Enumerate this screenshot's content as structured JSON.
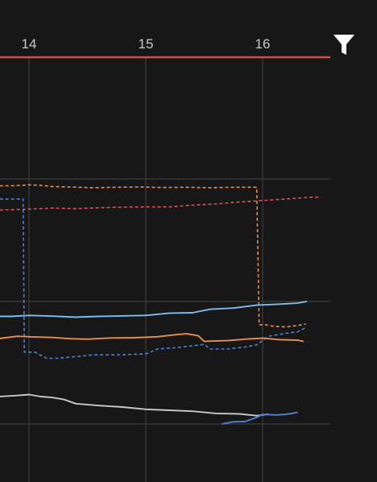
{
  "chart_data": {
    "type": "line",
    "x_ticks": [
      {
        "value": 14,
        "label": "14"
      },
      {
        "value": 15,
        "label": "15"
      },
      {
        "value": 16,
        "label": "16"
      }
    ],
    "grid": true,
    "series": [
      {
        "color": "#e8904a",
        "dash": true,
        "points": [
          [
            13.75,
            97.2
          ],
          [
            13.85,
            97.2
          ],
          [
            13.93,
            97.4
          ],
          [
            14.0,
            97.6
          ],
          [
            14.1,
            97.4
          ],
          [
            14.2,
            96.9
          ],
          [
            14.35,
            96.7
          ],
          [
            14.55,
            96.4
          ],
          [
            14.75,
            96.6
          ],
          [
            14.95,
            96.7
          ],
          [
            15.15,
            96.5
          ],
          [
            15.35,
            96.6
          ],
          [
            15.55,
            96.4
          ],
          [
            15.75,
            96.6
          ],
          [
            15.95,
            96.6
          ],
          [
            15.97,
            40.5
          ],
          [
            16.02,
            40.5
          ],
          [
            16.1,
            39.8
          ],
          [
            16.2,
            39.6
          ],
          [
            16.3,
            40.2
          ],
          [
            16.37,
            40.8
          ]
        ]
      },
      {
        "color": "#d9534f",
        "dash": true,
        "points": [
          [
            13.75,
            87.3
          ],
          [
            13.95,
            87.6
          ],
          [
            14.2,
            88.1
          ],
          [
            14.4,
            87.9
          ],
          [
            14.7,
            88.4
          ],
          [
            15.0,
            88.6
          ],
          [
            15.2,
            88.6
          ],
          [
            15.4,
            89.3
          ],
          [
            15.6,
            89.8
          ],
          [
            15.8,
            90.6
          ],
          [
            16.0,
            91.2
          ],
          [
            16.2,
            91.8
          ],
          [
            16.4,
            92.5
          ],
          [
            16.5,
            92.6
          ]
        ]
      },
      {
        "color": "#4f7fd4",
        "dash": true,
        "points": [
          [
            13.75,
            91.8
          ],
          [
            13.95,
            91.8
          ],
          [
            13.96,
            29.3
          ],
          [
            14.05,
            29.3
          ],
          [
            14.15,
            26.8
          ],
          [
            14.25,
            26.8
          ],
          [
            14.4,
            27.5
          ],
          [
            14.55,
            28.2
          ],
          [
            14.75,
            28.2
          ],
          [
            15.0,
            28.6
          ],
          [
            15.1,
            30.6
          ],
          [
            15.25,
            31.1
          ],
          [
            15.4,
            31.9
          ],
          [
            15.5,
            32.5
          ],
          [
            15.55,
            30.6
          ],
          [
            15.7,
            30.6
          ],
          [
            15.85,
            31.4
          ],
          [
            15.95,
            32.3
          ],
          [
            16.05,
            35.8
          ],
          [
            16.2,
            37.0
          ],
          [
            16.3,
            37.6
          ],
          [
            16.37,
            39.3
          ]
        ]
      },
      {
        "color": "#e8904a",
        "dash": false,
        "points": [
          [
            13.75,
            34.9
          ],
          [
            13.9,
            35.8
          ],
          [
            14.0,
            35.6
          ],
          [
            14.2,
            35.3
          ],
          [
            14.35,
            34.8
          ],
          [
            14.5,
            34.6
          ],
          [
            14.7,
            35.1
          ],
          [
            14.9,
            35.2
          ],
          [
            15.1,
            35.6
          ],
          [
            15.25,
            36.4
          ],
          [
            15.35,
            36.8
          ],
          [
            15.45,
            36.0
          ],
          [
            15.5,
            33.7
          ],
          [
            15.55,
            33.8
          ],
          [
            15.7,
            34.0
          ],
          [
            15.85,
            34.6
          ],
          [
            16.0,
            35.0
          ],
          [
            16.15,
            34.4
          ],
          [
            16.3,
            34.2
          ],
          [
            16.35,
            33.7
          ]
        ]
      },
      {
        "color": "#7fbbf0",
        "dash": false,
        "points": [
          [
            13.75,
            43.9
          ],
          [
            13.85,
            43.9
          ],
          [
            14.0,
            44.3
          ],
          [
            14.2,
            44.0
          ],
          [
            14.4,
            43.6
          ],
          [
            14.6,
            43.9
          ],
          [
            15.0,
            44.3
          ],
          [
            15.2,
            45.2
          ],
          [
            15.4,
            45.4
          ],
          [
            15.55,
            46.8
          ],
          [
            15.75,
            47.3
          ],
          [
            15.95,
            48.5
          ],
          [
            16.15,
            48.9
          ],
          [
            16.3,
            49.3
          ],
          [
            16.38,
            50.0
          ]
        ]
      },
      {
        "color": "#c8c8c8",
        "dash": false,
        "points": [
          [
            13.75,
            11.2
          ],
          [
            13.9,
            11.6
          ],
          [
            14.0,
            12.0
          ],
          [
            14.1,
            11.2
          ],
          [
            14.2,
            10.8
          ],
          [
            14.3,
            10.0
          ],
          [
            14.4,
            8.3
          ],
          [
            14.6,
            7.5
          ],
          [
            14.8,
            6.9
          ],
          [
            15.0,
            6.0
          ],
          [
            15.2,
            5.6
          ],
          [
            15.4,
            5.2
          ],
          [
            15.6,
            4.3
          ],
          [
            15.8,
            4.1
          ],
          [
            15.95,
            3.4
          ],
          [
            16.05,
            4.0
          ]
        ]
      },
      {
        "color": "#4f7fd4",
        "dash": false,
        "points": [
          [
            15.65,
            0.0
          ],
          [
            15.75,
            0.9
          ],
          [
            15.85,
            1.0
          ],
          [
            15.95,
            2.7
          ],
          [
            16.0,
            3.9
          ],
          [
            16.12,
            3.7
          ],
          [
            16.2,
            3.9
          ],
          [
            16.3,
            4.7
          ]
        ]
      }
    ]
  },
  "controls": {
    "filter_icon": "filter-icon"
  }
}
